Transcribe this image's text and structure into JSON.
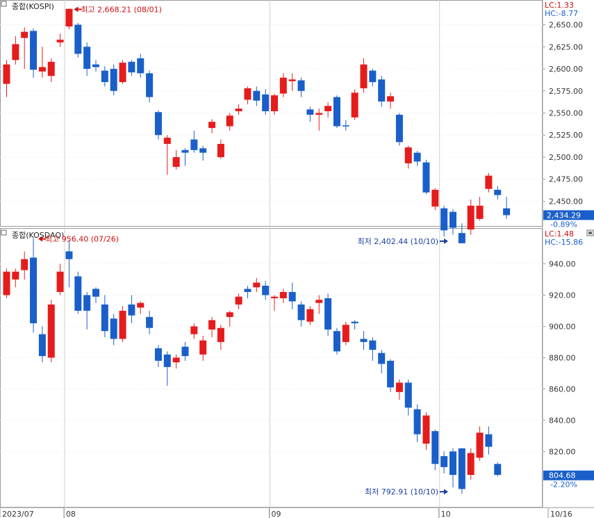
{
  "colors": {
    "up": "#e51c1c",
    "down": "#1a5fc9",
    "axis_text": "#333333",
    "lc_label": "#d01010",
    "hc_label": "#1a5fc9",
    "price_box": "#1a5fc9"
  },
  "x_axis": {
    "labels": [
      {
        "text": "2023/07",
        "day": 0
      },
      {
        "text": "08",
        "day": 7
      },
      {
        "text": "09",
        "day": 30
      },
      {
        "text": "10",
        "day": 49
      },
      {
        "text": "10/16",
        "day": 59.8
      }
    ]
  },
  "chart_data": [
    {
      "type": "candlestick",
      "title": "종합(KOSPI)",
      "lc_label": "LC:1.33",
      "hc_label": "HC:-8.77",
      "ylim": [
        2422,
        2678
      ],
      "y_ticks": [
        "2,650.00",
        "2,625.00",
        "2,600.00",
        "2,575.00",
        "2,550.00",
        "2,525.00",
        "2,500.00",
        "2,475.00",
        "2,450.00"
      ],
      "last_price": "2,434.29",
      "last_price_value": 2434.29,
      "change_pct": "-0.89%",
      "annotations": {
        "high": {
          "text": "최고 2,668.21 (08/01)",
          "index": 7,
          "value": 2668.21
        },
        "low": {
          "text": "최저 2,402.44 (10/10)",
          "index": 50,
          "value": 2402.44
        }
      },
      "candles": [
        [
          2583,
          2605,
          2568,
          2610
        ],
        [
          2610,
          2628,
          2605,
          2637
        ],
        [
          2635,
          2642,
          2600,
          2647
        ],
        [
          2643,
          2599,
          2590,
          2646
        ],
        [
          2597,
          2602,
          2590,
          2625
        ],
        [
          2592,
          2608,
          2585,
          2612
        ],
        [
          2630,
          2633,
          2625,
          2640
        ],
        [
          2648,
          2668,
          2645,
          2668.21
        ],
        [
          2650,
          2617,
          2613,
          2652
        ],
        [
          2625,
          2600,
          2592,
          2630
        ],
        [
          2605,
          2602,
          2597,
          2610
        ],
        [
          2598,
          2585,
          2580,
          2603
        ],
        [
          2600,
          2575,
          2570,
          2605
        ],
        [
          2585,
          2607,
          2583,
          2610
        ],
        [
          2608,
          2596,
          2592,
          2610
        ],
        [
          2612,
          2595,
          2590,
          2617
        ],
        [
          2595,
          2568,
          2562,
          2598
        ],
        [
          2551,
          2525,
          2520,
          2553
        ],
        [
          2515,
          2522,
          2480,
          2525
        ],
        [
          2489,
          2500,
          2486,
          2508
        ],
        [
          2508,
          2505,
          2490,
          2510
        ],
        [
          2520,
          2508,
          2505,
          2530
        ],
        [
          2510,
          2505,
          2496,
          2513
        ],
        [
          2533,
          2540,
          2527,
          2543
        ],
        [
          2500,
          2515,
          2498,
          2520
        ],
        [
          2535,
          2547,
          2530,
          2550
        ],
        [
          2552,
          2555,
          2548,
          2560
        ],
        [
          2565,
          2578,
          2560,
          2580
        ],
        [
          2575,
          2564,
          2558,
          2580
        ],
        [
          2571,
          2552,
          2548,
          2577
        ],
        [
          2552,
          2570,
          2548,
          2572
        ],
        [
          2572,
          2590,
          2568,
          2595
        ],
        [
          2586,
          2588,
          2575,
          2595
        ],
        [
          2587,
          2575,
          2568,
          2590
        ],
        [
          2554,
          2548,
          2540,
          2557
        ],
        [
          2548,
          2550,
          2530,
          2555
        ],
        [
          2552,
          2558,
          2545,
          2562
        ],
        [
          2568,
          2535,
          2533,
          2570
        ],
        [
          2536,
          2535,
          2530,
          2542
        ],
        [
          2545,
          2573,
          2542,
          2577
        ],
        [
          2578,
          2605,
          2573,
          2612
        ],
        [
          2598,
          2585,
          2580,
          2600
        ],
        [
          2588,
          2563,
          2557,
          2592
        ],
        [
          2563,
          2569,
          2555,
          2573
        ],
        [
          2548,
          2517,
          2513,
          2550
        ],
        [
          2493,
          2511,
          2487,
          2513
        ],
        [
          2505,
          2495,
          2490,
          2507
        ],
        [
          2494,
          2460,
          2458,
          2497
        ],
        [
          2444,
          2463,
          2440,
          2465
        ],
        [
          2442,
          2417,
          2410,
          2445
        ],
        [
          2438,
          2420,
          2412,
          2441
        ],
        [
          2414,
          2402.44,
          2402.44,
          2425
        ],
        [
          2418,
          2445,
          2412,
          2452
        ],
        [
          2430,
          2445,
          2428,
          2455
        ],
        [
          2464,
          2479,
          2460,
          2482
        ],
        [
          2463,
          2457,
          2452,
          2467
        ],
        [
          2442,
          2434.29,
          2430,
          2455
        ]
      ]
    },
    {
      "type": "candlestick",
      "title": "종합(KOSDAQ)",
      "lc_label": "LC:1.48",
      "hc_label": "HC:-15.86",
      "ylim": [
        785,
        962
      ],
      "y_ticks": [
        "940.00",
        "920.00",
        "900.00",
        "880.00",
        "860.00",
        "840.00",
        "820.00"
      ],
      "last_price": "804.68",
      "last_price_value": 804.68,
      "change_pct": "-2.20%",
      "annotations": {
        "high": {
          "text": "최고 956.40 (07/26)",
          "index": 3,
          "value": 956.4
        },
        "low": {
          "text": "최저 792.91 (10/10)",
          "index": 50,
          "value": 792.91
        }
      },
      "candles": [
        [
          920,
          935,
          918,
          937
        ],
        [
          930,
          935,
          925,
          937
        ],
        [
          936,
          943,
          930,
          948
        ],
        [
          944,
          902,
          896,
          956.4
        ],
        [
          895,
          881,
          877,
          900
        ],
        [
          880,
          914,
          877,
          917
        ],
        [
          922,
          935,
          920,
          940
        ],
        [
          948,
          943,
          925,
          955
        ],
        [
          932,
          910,
          908,
          935
        ],
        [
          920,
          910,
          898,
          922
        ],
        [
          924,
          919,
          915,
          925
        ],
        [
          914,
          897,
          893,
          920
        ],
        [
          905,
          892,
          888,
          908
        ],
        [
          892,
          910,
          890,
          913
        ],
        [
          914,
          907,
          902,
          920
        ],
        [
          912,
          915,
          908,
          916
        ],
        [
          906,
          899,
          895,
          910
        ],
        [
          886,
          878,
          874,
          888
        ],
        [
          882,
          874,
          862,
          884
        ],
        [
          877,
          880,
          873,
          882
        ],
        [
          887,
          881,
          878,
          890
        ],
        [
          895,
          900,
          892,
          902
        ],
        [
          882,
          891,
          878,
          894
        ],
        [
          898,
          904,
          893,
          906
        ],
        [
          890,
          899,
          885,
          901
        ],
        [
          906,
          909,
          900,
          910
        ],
        [
          914,
          919,
          911,
          921
        ],
        [
          924,
          922,
          918,
          926
        ],
        [
          925,
          928,
          922,
          931
        ],
        [
          926,
          920,
          917,
          929
        ],
        [
          918,
          919,
          910,
          920
        ],
        [
          918,
          922,
          915,
          924
        ],
        [
          922,
          916,
          911,
          928
        ],
        [
          914,
          904,
          900,
          916
        ],
        [
          903,
          911,
          901,
          913
        ],
        [
          915,
          917,
          908,
          920
        ],
        [
          918,
          898,
          894,
          921
        ],
        [
          897,
          884,
          882,
          899
        ],
        [
          890,
          901,
          888,
          903
        ],
        [
          903,
          902,
          898,
          904
        ],
        [
          892,
          890,
          885,
          897
        ],
        [
          891,
          885,
          878,
          893
        ],
        [
          883,
          876,
          870,
          885
        ],
        [
          878,
          861,
          858,
          879
        ],
        [
          858,
          864,
          853,
          866
        ],
        [
          864,
          848,
          843,
          866
        ],
        [
          847,
          831,
          826,
          850
        ],
        [
          825,
          843,
          821,
          845
        ],
        [
          833,
          812,
          808,
          834
        ],
        [
          817,
          810,
          806,
          820
        ],
        [
          820,
          805,
          797,
          822
        ],
        [
          822,
          796,
          792.91,
          822
        ],
        [
          805,
          819,
          802,
          822
        ],
        [
          816,
          832,
          814,
          836
        ],
        [
          831,
          823,
          818,
          836
        ],
        [
          812,
          805,
          804,
          813
        ]
      ]
    }
  ]
}
